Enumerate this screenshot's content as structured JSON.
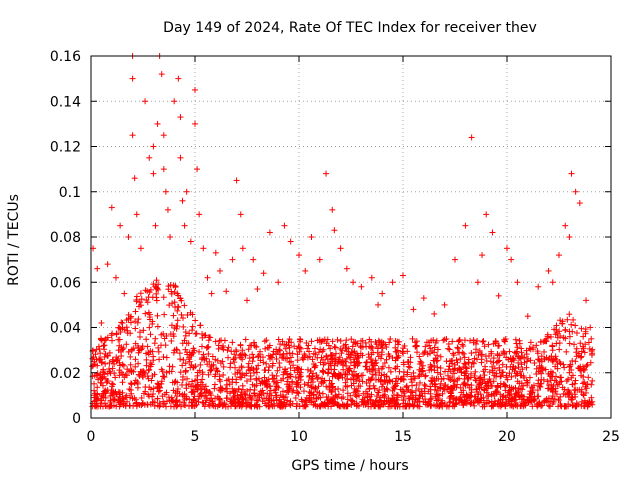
{
  "chart_data": {
    "type": "scatter",
    "title": "Day 149 of 2024, Rate Of TEC Index for receiver thev",
    "xlabel": "GPS time / hours",
    "ylabel": "ROTI / TECUs",
    "xlim": [
      0,
      25
    ],
    "ylim": [
      0,
      0.16
    ],
    "xticks": [
      0,
      5,
      10,
      15,
      20,
      25
    ],
    "xtick_labels": [
      "0",
      "5",
      "10",
      "15",
      "20",
      "25"
    ],
    "yticks": [
      0,
      0.02,
      0.04,
      0.06,
      0.08,
      0.1,
      0.12,
      0.14,
      0.16
    ],
    "ytick_labels": [
      "0",
      "0.02",
      "0.04",
      "0.06",
      "0.08",
      "0.1",
      "0.12",
      "0.14",
      "0.16"
    ],
    "grid": true,
    "marker": "+",
    "color": "#ff0000",
    "series": [
      {
        "name": "ROTI",
        "x": [
          0.1,
          0.3,
          0.5,
          0.8,
          1.0,
          1.2,
          1.4,
          1.6,
          1.8,
          2.0,
          2.0,
          2.0,
          2.1,
          2.2,
          2.4,
          2.6,
          2.8,
          3.0,
          3.0,
          3.1,
          3.2,
          3.3,
          3.4,
          3.5,
          3.5,
          3.6,
          3.7,
          3.8,
          4.0,
          4.2,
          4.3,
          4.3,
          4.4,
          4.5,
          4.6,
          4.8,
          5.0,
          5.0,
          5.1,
          5.2,
          5.4,
          5.6,
          5.8,
          6.0,
          6.2,
          6.5,
          6.8,
          7.0,
          7.2,
          7.3,
          7.5,
          7.8,
          8.0,
          8.3,
          8.6,
          9.0,
          9.3,
          9.6,
          10.0,
          10.3,
          10.6,
          11.0,
          11.3,
          11.6,
          11.7,
          12.0,
          12.3,
          12.6,
          13.0,
          13.5,
          13.8,
          14.0,
          14.5,
          15.0,
          15.5,
          16.0,
          16.5,
          17.0,
          17.5,
          18.0,
          18.3,
          18.6,
          18.8,
          19.0,
          19.3,
          19.6,
          20.0,
          20.2,
          20.5,
          21.0,
          21.5,
          22.0,
          22.2,
          22.5,
          22.8,
          23.0,
          23.1,
          23.3,
          23.5,
          23.8,
          24.0
        ],
        "y": [
          0.075,
          0.066,
          0.042,
          0.068,
          0.093,
          0.062,
          0.085,
          0.055,
          0.08,
          0.16,
          0.15,
          0.125,
          0.106,
          0.09,
          0.075,
          0.14,
          0.115,
          0.12,
          0.108,
          0.085,
          0.13,
          0.16,
          0.152,
          0.125,
          0.11,
          0.1,
          0.092,
          0.08,
          0.14,
          0.15,
          0.133,
          0.115,
          0.096,
          0.085,
          0.1,
          0.078,
          0.145,
          0.13,
          0.11,
          0.09,
          0.075,
          0.062,
          0.055,
          0.073,
          0.065,
          0.056,
          0.07,
          0.105,
          0.09,
          0.075,
          0.052,
          0.07,
          0.057,
          0.064,
          0.082,
          0.06,
          0.085,
          0.078,
          0.072,
          0.065,
          0.08,
          0.07,
          0.108,
          0.092,
          0.083,
          0.075,
          0.066,
          0.06,
          0.058,
          0.062,
          0.05,
          0.055,
          0.06,
          0.063,
          0.048,
          0.053,
          0.046,
          0.05,
          0.07,
          0.085,
          0.124,
          0.06,
          0.072,
          0.09,
          0.082,
          0.054,
          0.075,
          0.07,
          0.06,
          0.045,
          0.058,
          0.065,
          0.06,
          0.072,
          0.085,
          0.08,
          0.108,
          0.1,
          0.095,
          0.052,
          0.04
        ],
        "band_min": 0.005,
        "band_max": 0.035
      }
    ]
  }
}
